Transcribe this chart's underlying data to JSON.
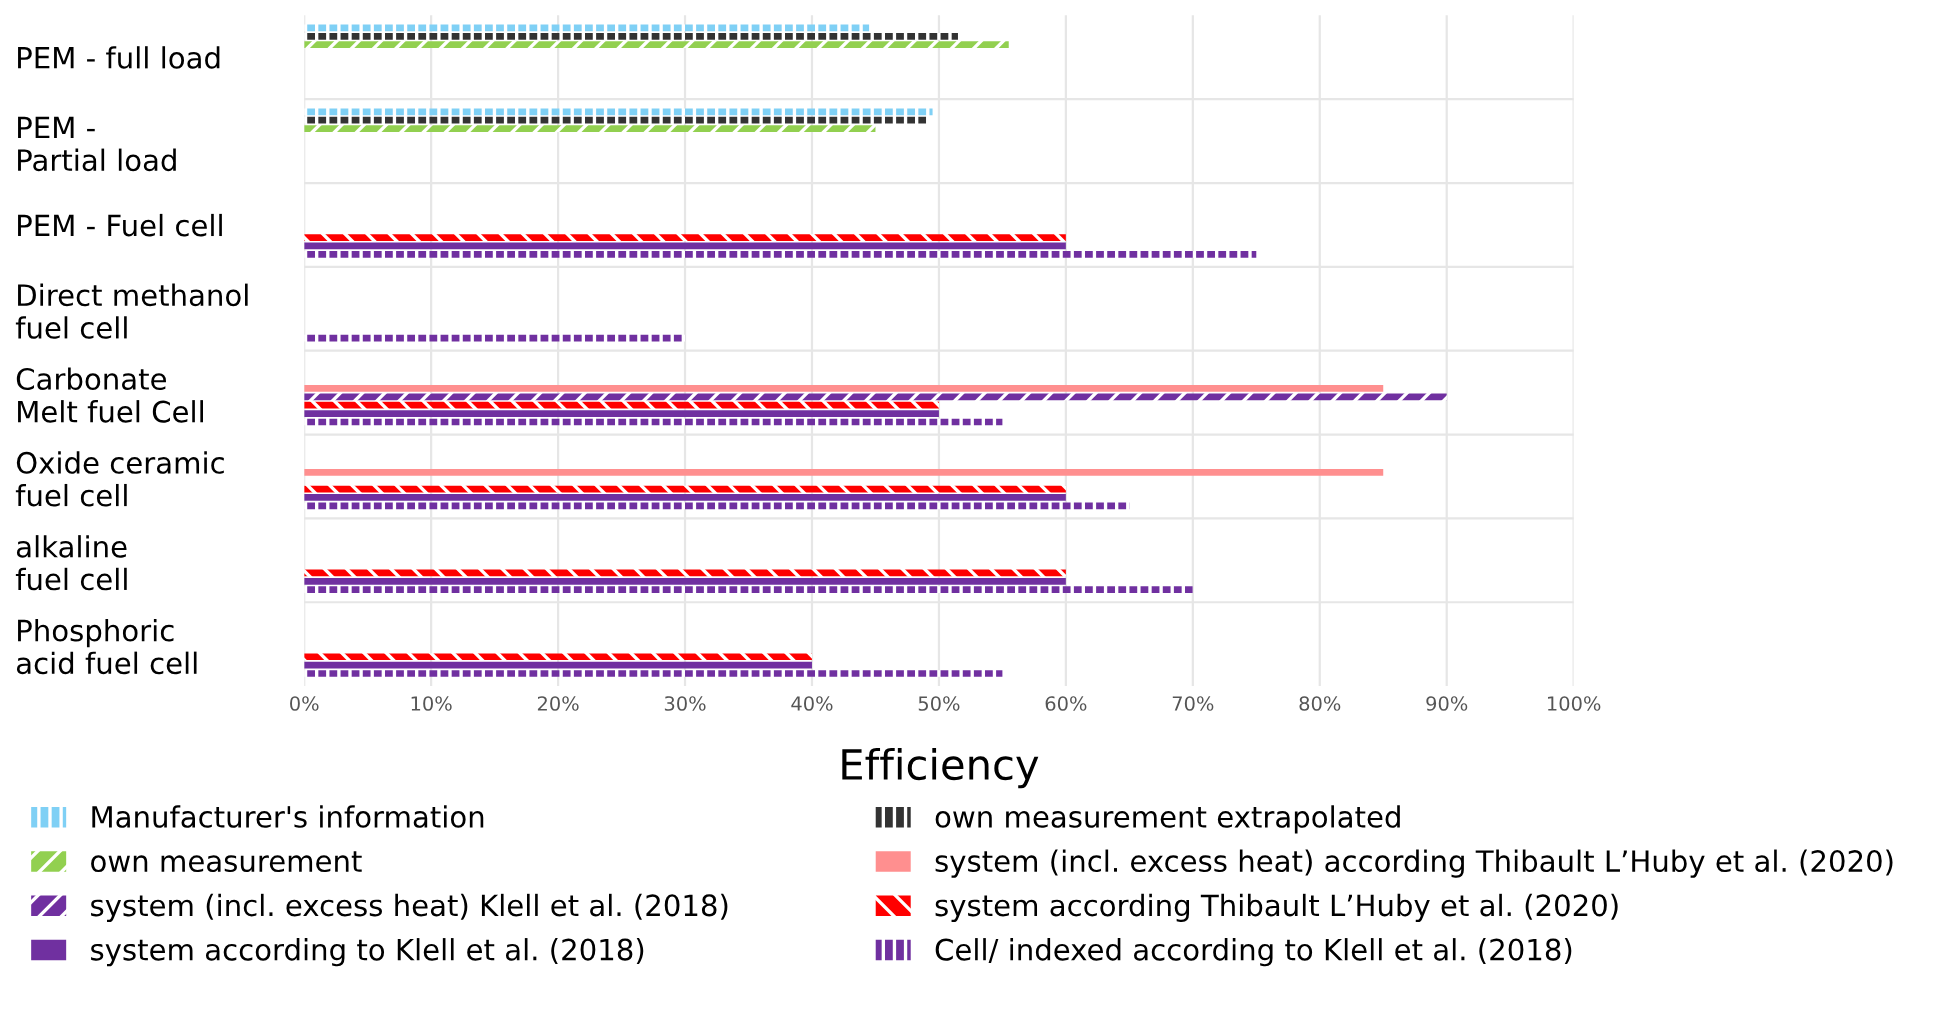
{
  "chart_data": {
    "type": "bar",
    "orientation": "horizontal",
    "xlabel": "Efficiency",
    "categories": [
      "PEM - full load",
      "PEM - Partial load",
      "PEM - Fuel cell",
      "Direct methanol fuel cell",
      "Carbonate Melt fuel Cell",
      "Oxide ceramic fuel cell",
      "alkaline fuel cell",
      "Phosphoric acid fuel cell"
    ],
    "xlim": [
      0,
      100
    ],
    "xticks": [
      {
        "value": 0,
        "label": "0%"
      },
      {
        "value": 10,
        "label": "10%"
      },
      {
        "value": 20,
        "label": "20%"
      },
      {
        "value": 30,
        "label": "30%"
      },
      {
        "value": 40,
        "label": "40%"
      },
      {
        "value": 50,
        "label": "50%"
      },
      {
        "value": 60,
        "label": "60%"
      },
      {
        "value": 70,
        "label": "70%"
      },
      {
        "value": 80,
        "label": "80%"
      },
      {
        "value": 90,
        "label": "90%"
      },
      {
        "value": 100,
        "label": "100%"
      }
    ],
    "grid": true,
    "legend": "bottom",
    "series": [
      {
        "name": "Manufacturer's information",
        "color": "#7fd0f5",
        "values": [
          44.5,
          49.5,
          null,
          null,
          null,
          null,
          null,
          null
        ]
      },
      {
        "name": "own measurement extrapolated",
        "color": "#333333",
        "values": [
          51.5,
          49,
          null,
          null,
          null,
          null,
          null,
          null
        ]
      },
      {
        "name": "own measurement",
        "color": "#92d050",
        "values": [
          55.5,
          45,
          null,
          null,
          null,
          null,
          null,
          null
        ]
      },
      {
        "name": "system (incl. excess heat) according Thibault L’Huby et al. (2020)",
        "color": "#ff8f8f",
        "values": [
          null,
          null,
          null,
          null,
          85,
          85,
          null,
          null
        ]
      },
      {
        "name": "system (incl. excess heat) Klell et al. (2018)",
        "color": "#7030a0",
        "values": [
          null,
          null,
          null,
          null,
          90,
          null,
          null,
          null
        ]
      },
      {
        "name": "system according Thibault L’Huby et al. (2020)",
        "color": "#ff0000",
        "values": [
          null,
          null,
          60,
          null,
          50,
          60,
          60,
          40
        ]
      },
      {
        "name": "system according to Klell et al. (2018)",
        "color": "#7030a0",
        "values": [
          null,
          null,
          60,
          null,
          50,
          60,
          60,
          40
        ]
      },
      {
        "name": "Cell/ indexed according to Klell et al. (2018)",
        "color": "#7030a0",
        "values": [
          null,
          null,
          75,
          30,
          55,
          65,
          70,
          55
        ]
      }
    ]
  }
}
